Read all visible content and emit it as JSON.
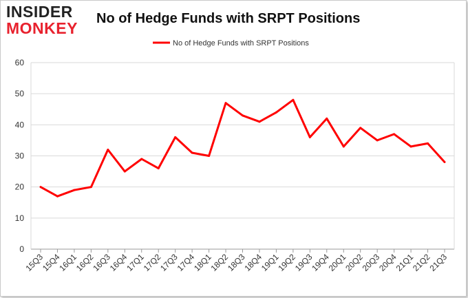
{
  "logo": {
    "line1": "INSIDER",
    "line2": "MONKEY"
  },
  "chart_data": {
    "type": "line",
    "title": "No of Hedge Funds with SRPT Positions",
    "xlabel": "",
    "ylabel": "",
    "ylim": [
      0,
      60
    ],
    "yticks": [
      0,
      10,
      20,
      30,
      40,
      50,
      60
    ],
    "grid": true,
    "legend": "top-center",
    "categories": [
      "15Q3",
      "15Q4",
      "16Q1",
      "16Q2",
      "16Q3",
      "16Q4",
      "17Q1",
      "17Q2",
      "17Q3",
      "17Q4",
      "18Q1",
      "18Q2",
      "18Q3",
      "18Q4",
      "19Q1",
      "19Q2",
      "19Q3",
      "19Q4",
      "20Q1",
      "20Q2",
      "20Q3",
      "20Q4",
      "21Q1",
      "21Q2",
      "21Q3"
    ],
    "series": [
      {
        "name": "No of Hedge Funds with SRPT Positions",
        "color": "#ff0000",
        "values": [
          20,
          17,
          19,
          20,
          32,
          25,
          29,
          26,
          36,
          31,
          30,
          47,
          43,
          41,
          44,
          48,
          36,
          42,
          33,
          39,
          35,
          37,
          33,
          34,
          28
        ]
      }
    ]
  }
}
